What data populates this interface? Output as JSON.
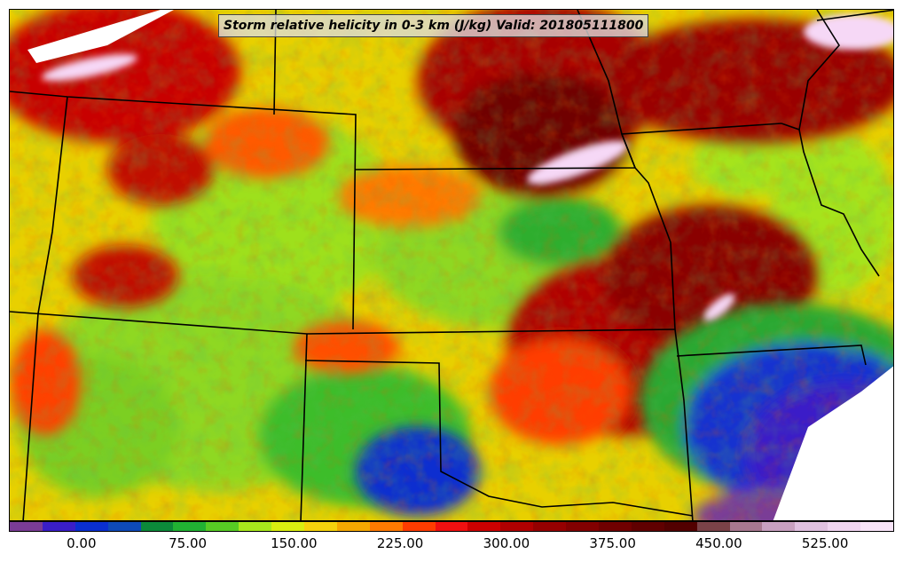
{
  "map": {
    "title": "Storm relative helicity in 0-3 km (J/kg) Valid: 201805111800"
  },
  "colorbar": {
    "colors": [
      "#7a3c96",
      "#3a1ec8",
      "#0a2fd0",
      "#0e4ab8",
      "#0c8a3a",
      "#21b233",
      "#57cc24",
      "#a8e81c",
      "#d9ee10",
      "#f5d20c",
      "#f4a800",
      "#ff7a00",
      "#ff3c00",
      "#f01010",
      "#cc0000",
      "#b00000",
      "#960000",
      "#820000",
      "#700000",
      "#600000",
      "#520000",
      "#7a4248",
      "#a87890",
      "#c8a0c0",
      "#e0c0e0",
      "#f0d4f0",
      "#f8e4f8"
    ],
    "tick_labels": [
      {
        "label": "0.00",
        "frac": 0.082
      },
      {
        "label": "75.00",
        "frac": 0.202
      },
      {
        "label": "150.00",
        "frac": 0.322
      },
      {
        "label": "225.00",
        "frac": 0.442
      },
      {
        "label": "300.00",
        "frac": 0.562
      },
      {
        "label": "375.00",
        "frac": 0.682
      },
      {
        "label": "450.00",
        "frac": 0.802
      },
      {
        "label": "525.00",
        "frac": 0.922
      }
    ]
  }
}
